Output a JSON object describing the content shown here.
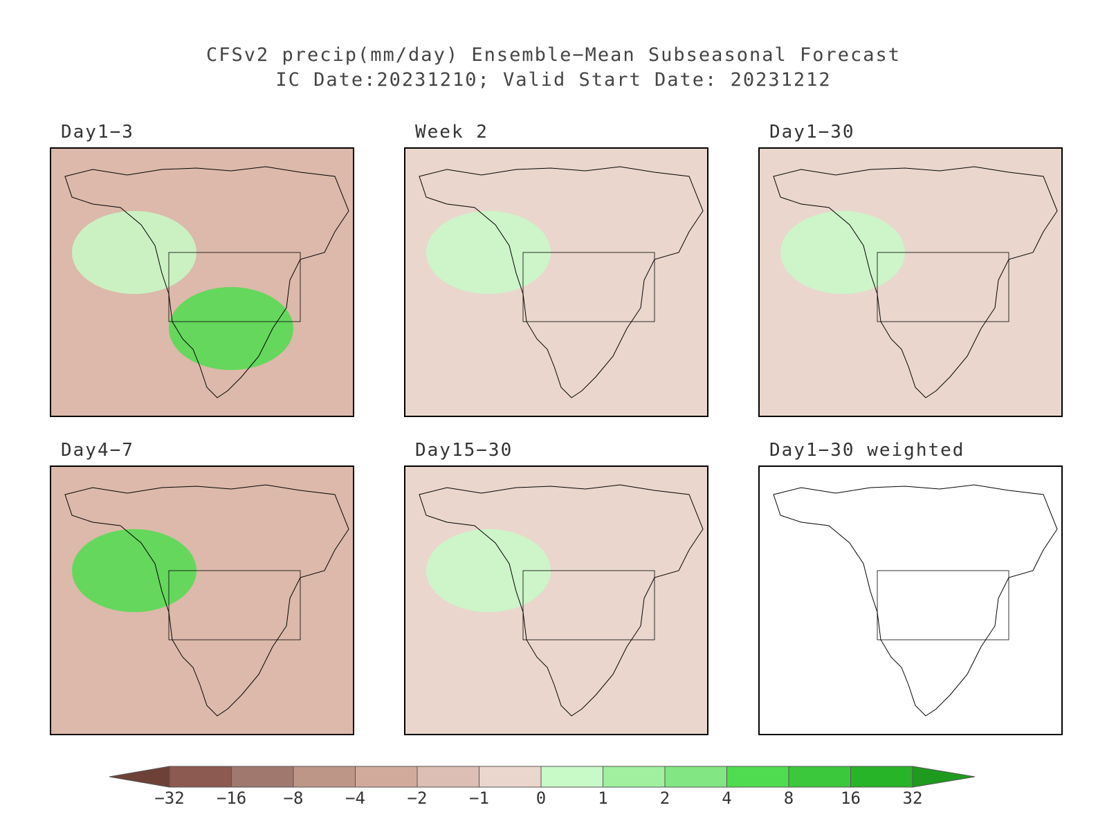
{
  "title": {
    "line1": "CFSv2 precip(mm/day) Ensemble−Mean Subseasonal Forecast",
    "line2": "IC Date:20231210; Valid Start Date: 20231212"
  },
  "panels": [
    {
      "label": "Day1−3",
      "bg": "#dcb9aa",
      "blobs": [
        {
          "color": "#c8fac8",
          "strength": "wet"
        },
        {
          "color": "#50dc50",
          "strength": "very-wet"
        }
      ]
    },
    {
      "label": "Week 2",
      "bg": "#ead6cc",
      "blobs": [
        {
          "color": "#c8fac8",
          "strength": "wet"
        }
      ]
    },
    {
      "label": "Day1−30",
      "bg": "#ead6cc",
      "blobs": [
        {
          "color": "#c8fac8",
          "strength": "wet"
        }
      ]
    },
    {
      "label": "Day4−7",
      "bg": "#dcb9aa",
      "blobs": [
        {
          "color": "#50dc50",
          "strength": "very-wet"
        }
      ]
    },
    {
      "label": "Day15−30",
      "bg": "#ead6cc",
      "blobs": [
        {
          "color": "#c8fac8",
          "strength": "wet"
        }
      ]
    },
    {
      "label": "Day1−30 weighted",
      "bg": "#ffffff",
      "blobs": []
    }
  ],
  "colorbar": {
    "labels": [
      "−32",
      "−16",
      "−8",
      "−4",
      "−2",
      "−1",
      "0",
      "1",
      "2",
      "4",
      "8",
      "16",
      "32"
    ],
    "colors": [
      "#6e4137",
      "#8c5a50",
      "#a0786e",
      "#be9687",
      "#d2aa9b",
      "#dcbeb4",
      "#ead6cc",
      "#c8fac8",
      "#a0f0a0",
      "#82e682",
      "#50dc50",
      "#3cc83c",
      "#28b428",
      "#1e9b1e"
    ]
  }
}
